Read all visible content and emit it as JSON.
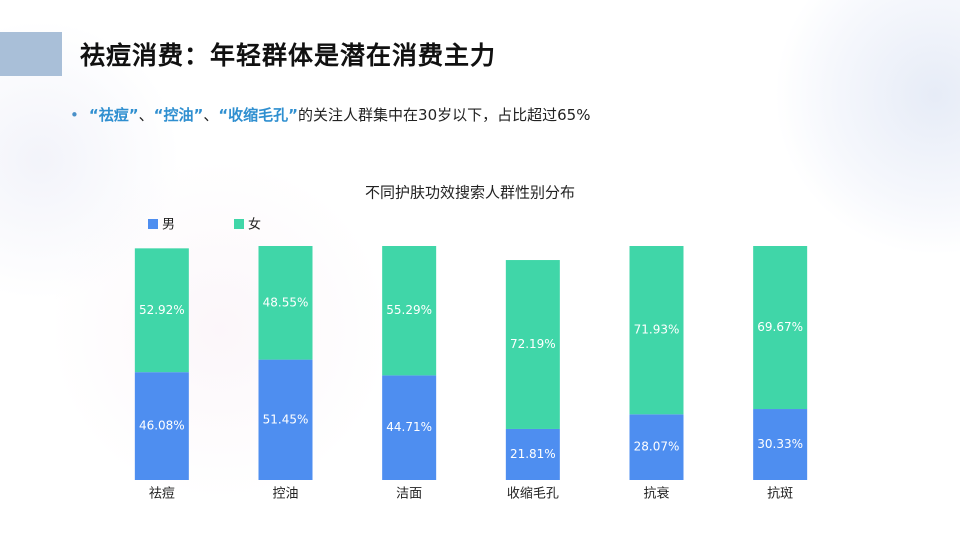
{
  "header": {
    "title": "祛痘消费：年轻群体是潜在消费主力"
  },
  "bullet": {
    "parts": [
      {
        "text": "“祛痘”",
        "highlight": true
      },
      {
        "text": "、",
        "highlight": false
      },
      {
        "text": "“控油”",
        "highlight": true
      },
      {
        "text": "、",
        "highlight": false
      },
      {
        "text": "“收缩毛孔”",
        "highlight": true
      },
      {
        "text": "的关注人群集中在30岁以下，占比超过65%",
        "highlight": false
      }
    ]
  },
  "chart_data": {
    "type": "stacked-bar",
    "title": "不同护肤功效搜索人群性别分布",
    "categories": [
      "祛痘",
      "控油",
      "洁面",
      "收缩毛孔",
      "抗衰",
      "抗斑"
    ],
    "series": [
      {
        "name": "男",
        "color": "#4e8ef0",
        "values": [
          46.08,
          51.45,
          44.71,
          21.81,
          28.07,
          30.33
        ],
        "value_labels": [
          "46.08%",
          "51.45%",
          "44.71%",
          "21.81%",
          "28.07%",
          "30.33%"
        ]
      },
      {
        "name": "女",
        "color": "#40d6a8",
        "values": [
          52.92,
          48.55,
          55.29,
          72.19,
          71.93,
          69.67
        ],
        "value_labels": [
          "52.92%",
          "48.55%",
          "55.29%",
          "72.19%",
          "71.93%",
          "69.67%"
        ]
      }
    ],
    "ylim": [
      0,
      100
    ],
    "legend": "top-left"
  }
}
